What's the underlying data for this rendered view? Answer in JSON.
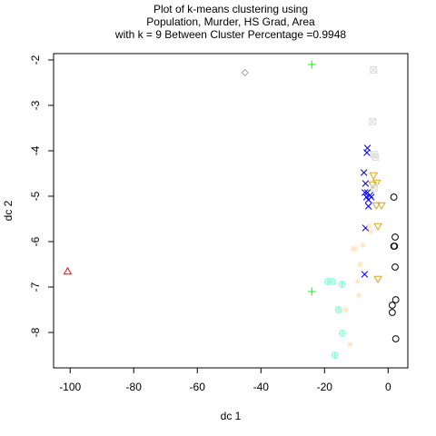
{
  "chart_data": {
    "type": "scatter",
    "title_lines": [
      "Plot of k-means clustering using",
      "Population, Murder, HS Grad, Area",
      "with  k = 9 Between Cluster Percentage =0.9948"
    ],
    "xlabel": "dc 1",
    "ylabel": "dc 2",
    "xlim": [
      -105.2,
      6.2
    ],
    "ylim": [
      -8.78,
      -1.86
    ],
    "x_ticks": [
      -100,
      -80,
      -60,
      -40,
      -20,
      0
    ],
    "y_ticks": [
      -8,
      -7,
      -6,
      -5,
      -4,
      -3,
      -2
    ],
    "x_tick_labels": [
      "-100",
      "-80",
      "-60",
      "-40",
      "-20",
      "0"
    ],
    "y_tick_labels": [
      "-8",
      "-7",
      "-6",
      "-5",
      "-4",
      "-3",
      "-2"
    ],
    "grid": false,
    "series": [
      {
        "marker": "circle",
        "color": "#000000",
        "points": [
          [
            1.8,
            -5.02
          ],
          [
            1.8,
            -6.1
          ],
          [
            2.0,
            -6.1
          ],
          [
            2.2,
            -5.9
          ],
          [
            2.2,
            -6.56
          ],
          [
            2.4,
            -7.28
          ],
          [
            1.3,
            -7.4
          ],
          [
            1.3,
            -7.56
          ],
          [
            2.4,
            -8.14
          ]
        ]
      },
      {
        "marker": "x",
        "color": "#0000ff",
        "points": [
          [
            -6.5,
            -3.94
          ],
          [
            -6.7,
            -4.04
          ],
          [
            -7.6,
            -4.48
          ],
          [
            -7.1,
            -4.72
          ],
          [
            -7.3,
            -4.92
          ],
          [
            -6.5,
            -4.92
          ],
          [
            -5.7,
            -4.98
          ],
          [
            -6.8,
            -5.02
          ],
          [
            -5.3,
            -5.02
          ],
          [
            -6.2,
            -5.08
          ],
          [
            -6.2,
            -5.22
          ],
          [
            -7.1,
            -5.7
          ],
          [
            -7.4,
            -6.72
          ]
        ]
      },
      {
        "marker": "triangle-down",
        "color": "#daa520",
        "points": [
          [
            -4.6,
            -4.54
          ],
          [
            -4.9,
            -4.74
          ],
          [
            -3.6,
            -4.7
          ],
          [
            -3.7,
            -5.2
          ],
          [
            -2.1,
            -5.2
          ],
          [
            -3.2,
            -5.66
          ],
          [
            -3.2,
            -6.82
          ]
        ]
      },
      {
        "marker": "plus",
        "color": "#00ff00",
        "points": [
          [
            -24.0,
            -2.1
          ],
          [
            -24.0,
            -7.1
          ]
        ]
      },
      {
        "marker": "diamond",
        "color": "#a9a9a9",
        "points": [
          [
            -45.0,
            -2.28
          ]
        ]
      },
      {
        "marker": "triangle-up",
        "color": "#ff0000",
        "points": [
          [
            -100.8,
            -6.66
          ]
        ]
      },
      {
        "marker": "square-x",
        "color": "#dcdcdc",
        "points": [
          [
            -4.6,
            -2.22
          ],
          [
            -4.9,
            -3.36
          ],
          [
            -4.0,
            -4.14
          ],
          [
            -4.5,
            -4.08
          ],
          [
            -4.4,
            -4.82
          ]
        ]
      },
      {
        "marker": "circle-plus",
        "color": "#7fffd4",
        "points": [
          [
            -19.0,
            -6.88
          ],
          [
            -17.5,
            -6.88
          ],
          [
            -14.5,
            -6.94
          ],
          [
            -15.6,
            -7.5
          ],
          [
            -14.4,
            -8.02
          ],
          [
            -16.8,
            -8.5
          ]
        ]
      },
      {
        "marker": "asterisk",
        "color": "#ffe4c4",
        "points": [
          [
            -6.0,
            -5.66
          ],
          [
            -5.5,
            -5.78
          ],
          [
            -8.0,
            -6.08
          ],
          [
            -10.5,
            -6.16
          ],
          [
            -11.0,
            -6.16
          ],
          [
            -8.8,
            -6.5
          ],
          [
            -9.6,
            -6.88
          ],
          [
            -9.2,
            -7.18
          ],
          [
            -13.4,
            -7.5
          ],
          [
            -12.0,
            -8.26
          ]
        ]
      }
    ]
  }
}
